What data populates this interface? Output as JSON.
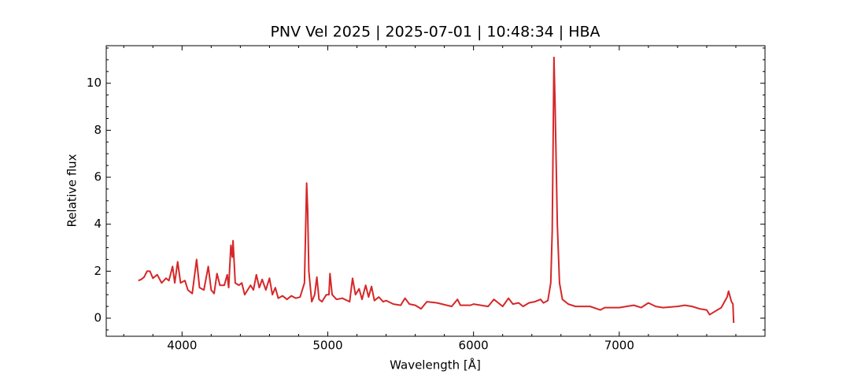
{
  "chart_data": {
    "type": "line",
    "title": "PNV Vel 2025 | 2025-07-01 | 10:48:34 | HBA",
    "x_label": "Wavelength [Å]",
    "y_label": "Relative flux",
    "xlim": [
      3480,
      8000
    ],
    "ylim": [
      -0.77,
      11.6
    ],
    "xticks": [
      4000,
      5000,
      6000,
      7000
    ],
    "xminorticks": [
      3600,
      3800,
      4200,
      4400,
      4600,
      4800,
      5200,
      5400,
      5600,
      5800,
      6200,
      6400,
      6600,
      6800,
      7200,
      7400,
      7600,
      7800
    ],
    "yticks": [
      0,
      2,
      4,
      6,
      8,
      10
    ],
    "yminorticks": [
      -0.5,
      0.5,
      1,
      1.5,
      2.5,
      3,
      3.5,
      4.5,
      5,
      5.5,
      6.5,
      7,
      7.5,
      8.5,
      9,
      9.5,
      10.5,
      11,
      11.5
    ],
    "series": [
      {
        "color": "#d62728",
        "x": [
          3700,
          3720,
          3740,
          3760,
          3780,
          3800,
          3830,
          3860,
          3890,
          3910,
          3935,
          3950,
          3970,
          3990,
          4020,
          4040,
          4070,
          4100,
          4120,
          4150,
          4180,
          4200,
          4220,
          4240,
          4260,
          4290,
          4310,
          4320,
          4335,
          4345,
          4350,
          4365,
          4390,
          4410,
          4430,
          4450,
          4470,
          4490,
          4510,
          4530,
          4550,
          4575,
          4600,
          4620,
          4640,
          4660,
          4690,
          4720,
          4750,
          4780,
          4810,
          4840,
          4855,
          4862,
          4870,
          4890,
          4910,
          4925,
          4940,
          4960,
          4990,
          5008,
          5015,
          5030,
          5060,
          5100,
          5150,
          5170,
          5190,
          5215,
          5235,
          5260,
          5280,
          5300,
          5320,
          5350,
          5380,
          5400,
          5450,
          5500,
          5530,
          5560,
          5600,
          5640,
          5680,
          5750,
          5850,
          5890,
          5910,
          5980,
          6000,
          6100,
          6140,
          6170,
          6200,
          6240,
          6270,
          6310,
          6340,
          6380,
          6420,
          6460,
          6480,
          6510,
          6530,
          6540,
          6552,
          6560,
          6575,
          6590,
          6610,
          6650,
          6700,
          6800,
          6870,
          6900,
          7000,
          7100,
          7150,
          7200,
          7250,
          7300,
          7400,
          7450,
          7500,
          7550,
          7600,
          7620,
          7660,
          7700,
          7740,
          7750,
          7770,
          7780,
          7785
        ],
        "values": [
          1.6,
          1.65,
          1.75,
          2.0,
          2.0,
          1.7,
          1.85,
          1.5,
          1.7,
          1.6,
          2.2,
          1.5,
          2.4,
          1.5,
          1.6,
          1.2,
          1.05,
          2.5,
          1.3,
          1.2,
          2.2,
          1.2,
          1.05,
          1.9,
          1.4,
          1.4,
          1.85,
          1.3,
          3.1,
          2.6,
          3.3,
          1.5,
          1.4,
          1.5,
          1.0,
          1.2,
          1.4,
          1.2,
          1.85,
          1.3,
          1.65,
          1.2,
          1.7,
          1.0,
          1.3,
          0.85,
          0.95,
          0.8,
          0.95,
          0.85,
          0.9,
          1.5,
          5.75,
          4.6,
          2.0,
          0.7,
          1.0,
          1.75,
          0.8,
          0.7,
          1.0,
          1.0,
          1.9,
          1.0,
          0.8,
          0.85,
          0.7,
          1.7,
          1.0,
          1.25,
          0.8,
          1.4,
          0.9,
          1.35,
          0.75,
          0.9,
          0.7,
          0.75,
          0.6,
          0.55,
          0.85,
          0.6,
          0.55,
          0.4,
          0.7,
          0.65,
          0.5,
          0.8,
          0.55,
          0.55,
          0.6,
          0.5,
          0.8,
          0.65,
          0.5,
          0.85,
          0.6,
          0.65,
          0.5,
          0.65,
          0.7,
          0.8,
          0.65,
          0.75,
          1.5,
          3.7,
          11.1,
          9.0,
          4.0,
          1.5,
          0.8,
          0.6,
          0.5,
          0.5,
          0.35,
          0.45,
          0.45,
          0.55,
          0.45,
          0.65,
          0.5,
          0.45,
          0.5,
          0.55,
          0.5,
          0.4,
          0.35,
          0.15,
          0.3,
          0.45,
          0.9,
          1.15,
          0.7,
          0.6,
          -0.2
        ]
      }
    ]
  }
}
